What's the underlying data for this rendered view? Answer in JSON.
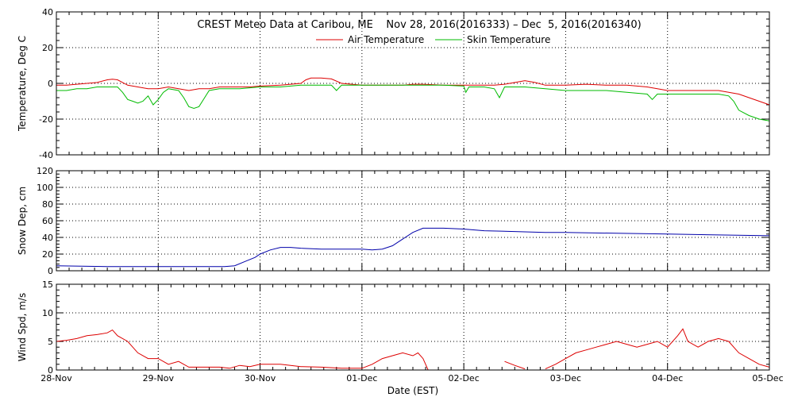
{
  "title": "CREST Meteo Data at Caribou, ME    Nov 28, 2016(2016333) – Dec  5, 2016(2016340)",
  "xlabel": "Date (EST)",
  "x_tick_labels": [
    "28-Nov",
    "29-Nov",
    "30-Nov",
    "01-Dec",
    "02-Dec",
    "03-Dec",
    "04-Dec",
    "05-Dec"
  ],
  "colors": {
    "air": "#dd0000",
    "skin": "#00bb00",
    "snow": "#0000aa",
    "wind": "#dd0000",
    "grid": "#000000"
  },
  "chart_data": [
    {
      "type": "line",
      "ylabel": "Temperature, Deg C",
      "ylim": [
        -40,
        40
      ],
      "y_ticks": [
        -40,
        -20,
        0,
        20,
        40
      ],
      "xlim": [
        0,
        7
      ],
      "grid": true,
      "legend": "top-center",
      "series": [
        {
          "name": "Air Temperature",
          "color": "air",
          "x": [
            0,
            0.1,
            0.2,
            0.3,
            0.4,
            0.5,
            0.55,
            0.6,
            0.7,
            0.8,
            0.9,
            1.0,
            1.1,
            1.2,
            1.3,
            1.4,
            1.5,
            1.6,
            1.7,
            1.8,
            1.9,
            2.0,
            2.2,
            2.4,
            2.45,
            2.5,
            2.6,
            2.7,
            2.8,
            2.9,
            3.0,
            3.2,
            3.4,
            3.5,
            3.6,
            3.8,
            4.0,
            4.1,
            4.2,
            4.3,
            4.4,
            4.5,
            4.6,
            4.7,
            4.8,
            4.9,
            5.0,
            5.2,
            5.4,
            5.6,
            5.8,
            5.9,
            6.0,
            6.2,
            6.4,
            6.5,
            6.6,
            6.7,
            6.8,
            6.9,
            7.0
          ],
          "values": [
            -1,
            -1,
            -0.5,
            0,
            0.5,
            2,
            2.3,
            2,
            -1,
            -2,
            -3,
            -3,
            -2,
            -3,
            -4,
            -3,
            -3,
            -2,
            -2,
            -2,
            -2,
            -1.5,
            -1,
            0,
            2,
            3,
            3,
            2.5,
            0,
            -0.5,
            -1,
            -1,
            -1,
            -0.5,
            -0.5,
            -1,
            -1,
            -1,
            -1,
            -1,
            -0.5,
            0.5,
            1.5,
            0.5,
            -1,
            -1,
            -1,
            -0.5,
            -1,
            -1,
            -2,
            -3,
            -4,
            -4,
            -4,
            -4,
            -5,
            -6,
            -8,
            -10,
            -12
          ]
        },
        {
          "name": "Skin Temperature",
          "color": "skin",
          "x": [
            0,
            0.1,
            0.2,
            0.3,
            0.4,
            0.5,
            0.6,
            0.65,
            0.7,
            0.75,
            0.8,
            0.85,
            0.9,
            0.95,
            1.0,
            1.05,
            1.1,
            1.2,
            1.25,
            1.3,
            1.35,
            1.4,
            1.5,
            1.6,
            1.8,
            2.0,
            2.2,
            2.4,
            2.5,
            2.6,
            2.7,
            2.75,
            2.8,
            2.9,
            3.0,
            3.2,
            3.4,
            3.6,
            3.8,
            4.0,
            4.02,
            4.05,
            4.1,
            4.2,
            4.3,
            4.35,
            4.4,
            4.6,
            4.8,
            5.0,
            5.2,
            5.4,
            5.6,
            5.8,
            5.85,
            5.9,
            6.0,
            6.2,
            6.4,
            6.5,
            6.6,
            6.65,
            6.7,
            6.8,
            6.9,
            7.0
          ],
          "values": [
            -4,
            -4,
            -3,
            -3,
            -2,
            -2,
            -2,
            -5,
            -9,
            -10,
            -11,
            -10,
            -7,
            -12,
            -9,
            -5,
            -3,
            -4,
            -8,
            -13,
            -14,
            -13,
            -4,
            -3,
            -3,
            -2,
            -2,
            -1,
            -1,
            -1,
            -1,
            -4,
            -1,
            -1,
            -1,
            -1,
            -1,
            -1,
            -1,
            -1.5,
            -5,
            -2,
            -2,
            -2,
            -3,
            -8,
            -2,
            -2,
            -3,
            -4,
            -4,
            -4,
            -5,
            -6,
            -9,
            -6,
            -6,
            -6,
            -6,
            -6,
            -7,
            -10,
            -15,
            -18,
            -20,
            -21
          ]
        }
      ]
    },
    {
      "type": "line",
      "ylabel": "Snow Dep, cm",
      "ylim": [
        0,
        120
      ],
      "y_ticks": [
        0,
        20,
        40,
        60,
        80,
        100,
        120
      ],
      "xlim": [
        0,
        7
      ],
      "grid": true,
      "series": [
        {
          "color": "snow",
          "x": [
            0,
            0.5,
            1.0,
            1.5,
            1.65,
            1.75,
            1.85,
            1.95,
            2.0,
            2.1,
            2.2,
            2.3,
            2.4,
            2.6,
            2.8,
            3.0,
            3.1,
            3.2,
            3.3,
            3.4,
            3.5,
            3.6,
            3.8,
            4.0,
            4.2,
            4.5,
            4.8,
            5.0,
            5.5,
            6.0,
            6.5,
            7.0
          ],
          "values": [
            6,
            5,
            5,
            5,
            5,
            6,
            11,
            16,
            20,
            25,
            28,
            28,
            27,
            26,
            26,
            26,
            25,
            26,
            30,
            38,
            46,
            51,
            51,
            50,
            48,
            47,
            46,
            46,
            45,
            44,
            43,
            42
          ]
        }
      ]
    },
    {
      "type": "line",
      "ylabel": "Wind Spd, m/s",
      "ylim": [
        0,
        15
      ],
      "y_ticks": [
        0,
        5,
        10,
        15
      ],
      "xlim": [
        0,
        7
      ],
      "grid": true,
      "series": [
        {
          "color": "wind",
          "x": [
            0,
            0.1,
            0.2,
            0.3,
            0.4,
            0.5,
            0.55,
            0.6,
            0.7,
            0.8,
            0.9,
            1.0,
            1.1,
            1.2,
            1.3,
            1.4,
            1.5,
            1.6,
            1.7,
            1.8,
            1.9,
            2.0,
            2.2,
            2.4,
            2.6,
            2.8,
            3.0,
            3.1,
            3.2,
            3.3,
            3.4,
            3.5,
            3.55,
            3.6,
            3.65,
            null,
            4.4,
            4.5,
            4.6,
            null,
            4.8,
            4.9,
            5.0,
            5.1,
            5.2,
            5.3,
            5.4,
            5.5,
            5.6,
            5.7,
            5.8,
            5.9,
            6.0,
            6.1,
            6.15,
            6.2,
            6.3,
            6.4,
            6.5,
            6.6,
            6.7,
            6.8,
            6.9,
            7.0
          ],
          "values": [
            5,
            5.2,
            5.5,
            6,
            6.2,
            6.5,
            7,
            6,
            5,
            3,
            2,
            2,
            1,
            1.5,
            0.5,
            0.5,
            0.5,
            0.5,
            0.3,
            0.8,
            0.6,
            1,
            1,
            0.6,
            0.5,
            0.3,
            0.3,
            1,
            2,
            2.5,
            3,
            2.5,
            3,
            2,
            0,
            null,
            1.5,
            0.8,
            0.2,
            null,
            0.2,
            1,
            2,
            3,
            3.5,
            4,
            4.5,
            5,
            4.5,
            4,
            4.5,
            5,
            4,
            6,
            7.2,
            5,
            4,
            5,
            5.5,
            5,
            3,
            2,
            1,
            0.5
          ]
        }
      ]
    }
  ]
}
